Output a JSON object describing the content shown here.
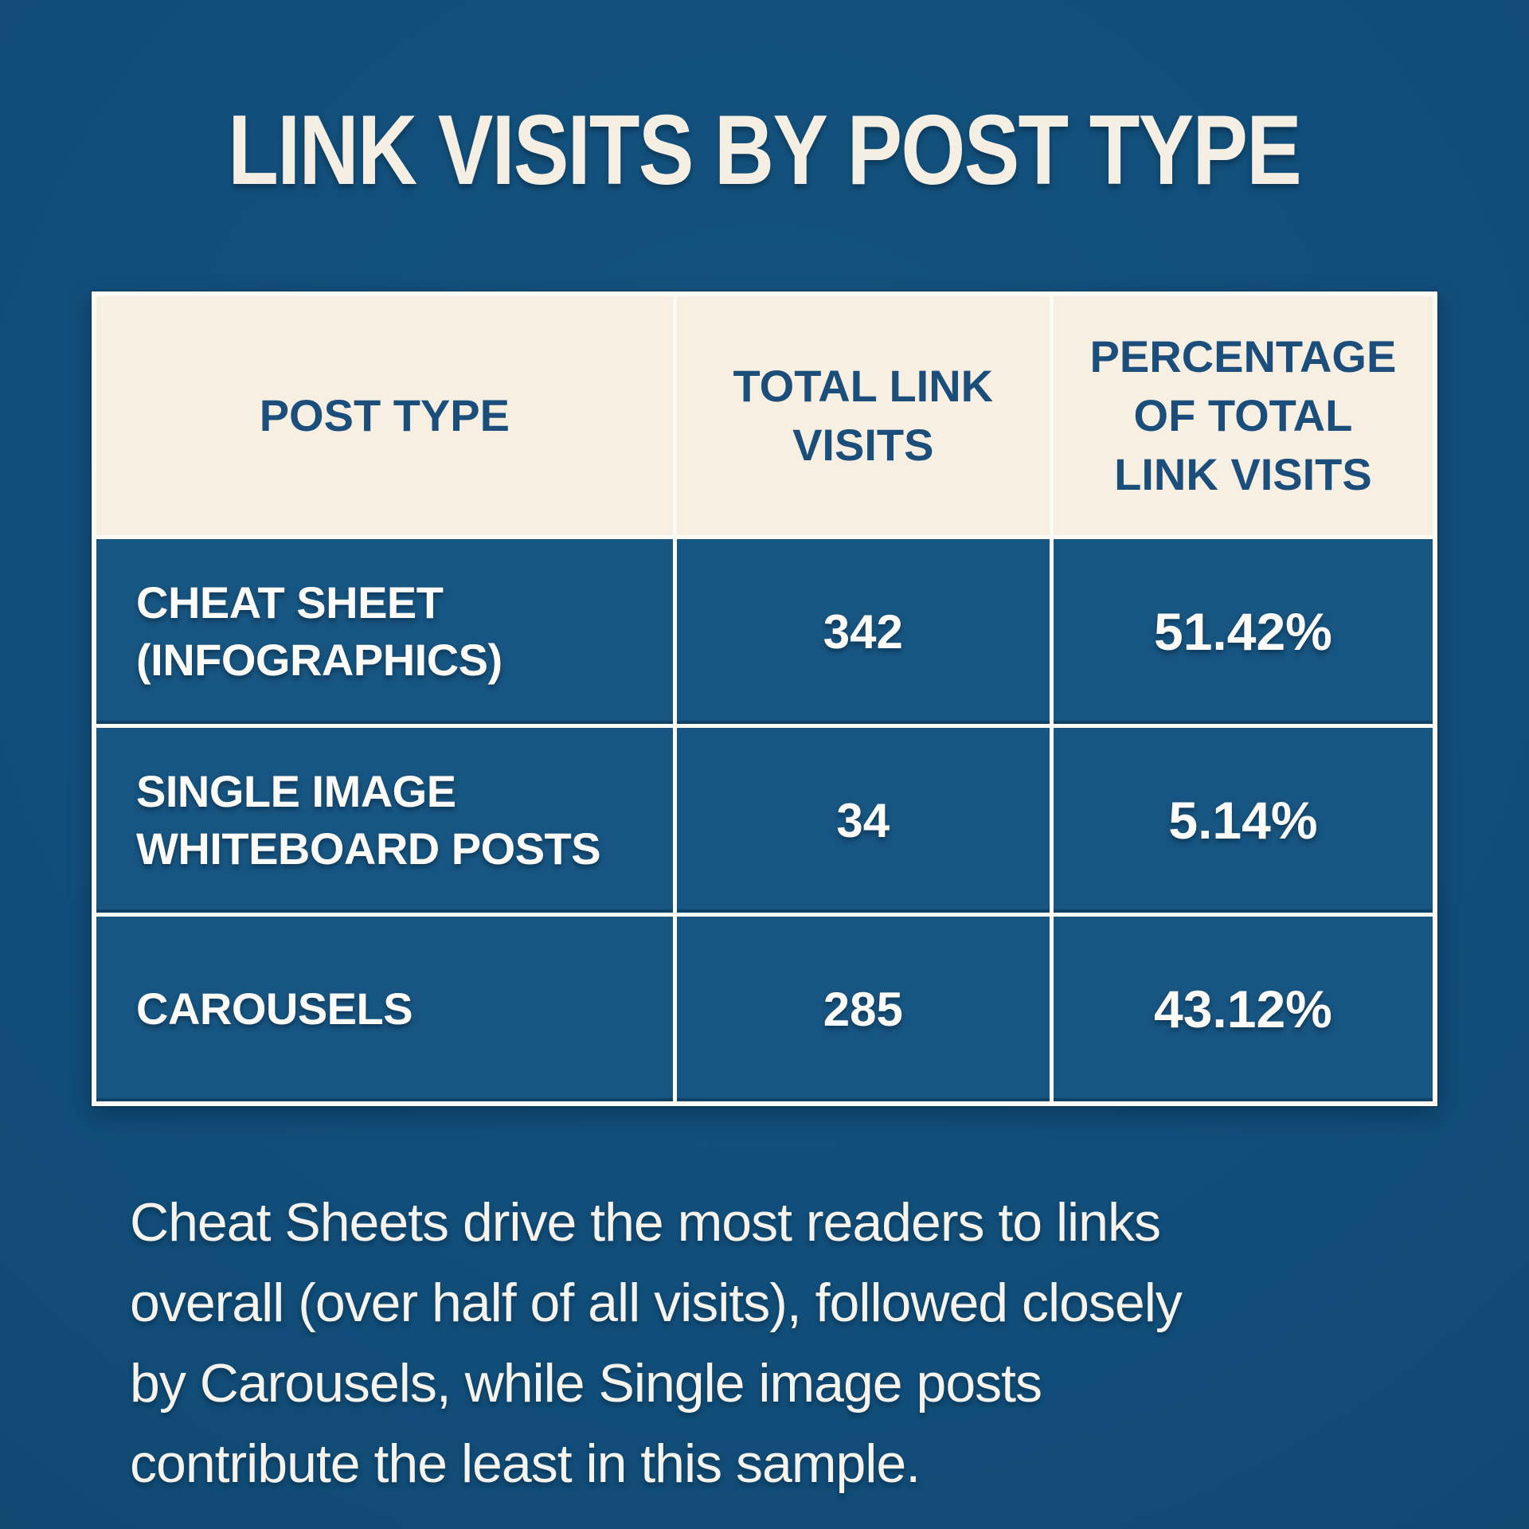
{
  "page": {
    "title": "LINK VISITS BY POST TYPE"
  },
  "colors": {
    "background_blue": "#114E7A",
    "cell_blue": "#175582",
    "header_cream": "#F7F0E2",
    "header_text_navy": "#1B4E7A",
    "text_white": "#FCFBF7",
    "border_white": "#FBFAF5"
  },
  "table": {
    "columns": [
      "POST TYPE",
      "TOTAL LINK VISITS",
      "PERCENTAGE OF TOTAL LINK VISITS"
    ],
    "rows": [
      {
        "post_type": "CHEAT SHEET (INFOGRAPHICS)",
        "total_link_visits": "342",
        "percentage": "51.42%"
      },
      {
        "post_type": "SINGLE IMAGE WHITEBOARD POSTS",
        "total_link_visits": "34",
        "percentage": "5.14%"
      },
      {
        "post_type": "CAROUSELS",
        "total_link_visits": "285",
        "percentage": "43.12%"
      }
    ]
  },
  "summary": {
    "lines": [
      "Cheat Sheets drive the most readers to links",
      "overall (over half of all visits), followed closely",
      "by Carousels, while Single image posts",
      "contribute the least in this sample."
    ]
  },
  "chart_data": {
    "type": "table",
    "title": "LINK VISITS BY POST TYPE",
    "columns": [
      "POST TYPE",
      "TOTAL LINK VISITS",
      "PERCENTAGE OF TOTAL LINK VISITS"
    ],
    "categories": [
      "CHEAT SHEET (INFOGRAPHICS)",
      "SINGLE IMAGE WHITEBOARD POSTS",
      "CAROUSELS"
    ],
    "series": [
      {
        "name": "TOTAL LINK VISITS",
        "values": [
          342,
          34,
          285
        ]
      },
      {
        "name": "PERCENTAGE OF TOTAL LINK VISITS",
        "values": [
          51.42,
          5.14,
          43.12
        ]
      }
    ],
    "annotation": "Cheat Sheets drive the most readers to links overall (over half of all visits), followed closely by Carousels, while Single image posts contribute the least in this sample."
  }
}
